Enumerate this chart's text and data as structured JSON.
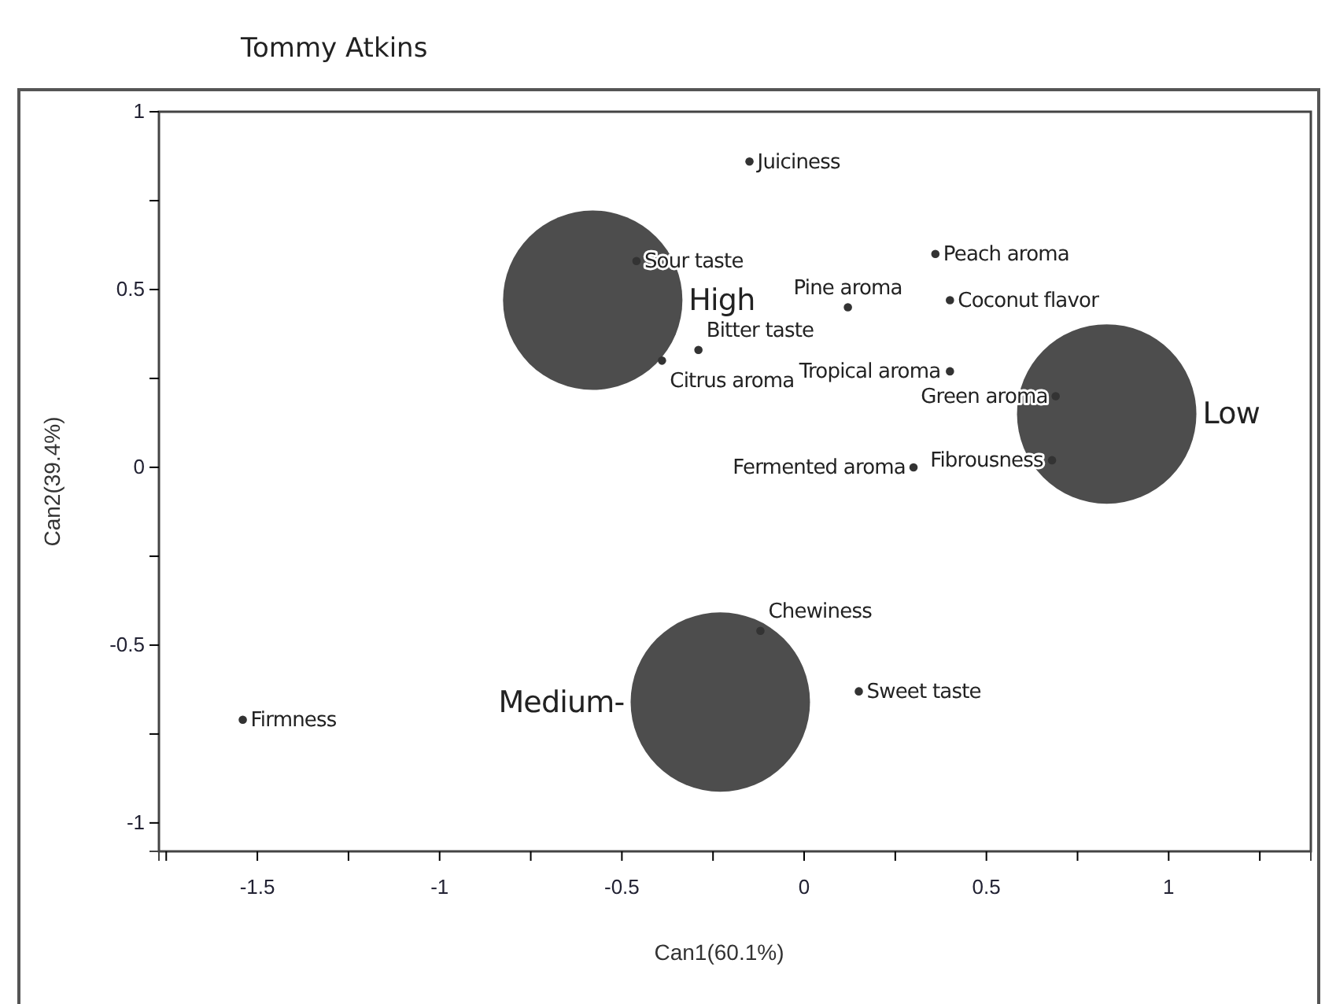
{
  "chart_data": {
    "type": "scatter",
    "title": "Tommy Atkins",
    "xlabel": "Can1(60.1%)",
    "ylabel": "Can2(39.4%)",
    "xlim": [
      -1.77,
      1.39
    ],
    "ylim": [
      -1.08,
      1.0
    ],
    "xticks": [
      {
        "value": -1.75,
        "label": null
      },
      -1.5,
      {
        "value": -1.25,
        "label": null
      },
      -1,
      {
        "value": -0.75,
        "label": null
      },
      -0.5,
      {
        "value": -0.25,
        "label": null
      },
      0,
      {
        "value": 0.25,
        "label": null
      },
      0.5,
      {
        "value": 0.75,
        "label": null
      },
      1,
      {
        "value": 1.25,
        "label": null
      }
    ],
    "yticks": [
      -1,
      {
        "value": -0.75,
        "label": null
      },
      -0.5,
      {
        "value": -0.25,
        "label": null
      },
      0,
      {
        "value": 0.25,
        "label": null
      },
      0.5,
      {
        "value": 0.75,
        "label": null
      },
      1
    ],
    "grid": false,
    "legend": false,
    "marker": "circle",
    "series": [
      {
        "type": "bubble",
        "name": "High",
        "color": "#4d4d4d",
        "x": [
          -0.58
        ],
        "values": [
          0.47
        ],
        "sizes": [
          1
        ]
      },
      {
        "type": "bubble",
        "name": "Low",
        "color": "#4d4d4d",
        "x": [
          0.83
        ],
        "values": [
          0.15
        ],
        "sizes": [
          1
        ]
      },
      {
        "type": "bubble",
        "name": "Medium-",
        "color": "#4d4d4d",
        "x": [
          -0.23
        ],
        "values": [
          -0.66
        ],
        "sizes": [
          1
        ]
      },
      {
        "name": "Juiciness",
        "color": "#333333",
        "x": [
          -0.15
        ],
        "values": [
          0.86
        ]
      },
      {
        "name": "Sour taste",
        "color": "#333333",
        "x": [
          -0.46
        ],
        "values": [
          0.58
        ]
      },
      {
        "name": "Peach aroma",
        "color": "#333333",
        "x": [
          0.36
        ],
        "values": [
          0.6
        ]
      },
      {
        "name": "Pine aroma",
        "color": "#333333",
        "x": [
          0.12
        ],
        "values": [
          0.45
        ]
      },
      {
        "name": "Coconut flavor",
        "color": "#333333",
        "x": [
          0.4
        ],
        "values": [
          0.47
        ]
      },
      {
        "name": "Tropical aroma",
        "color": "#333333",
        "x": [
          0.4
        ],
        "values": [
          0.27
        ]
      },
      {
        "name": "Bitter taste",
        "color": "#333333",
        "x": [
          -0.29
        ],
        "values": [
          0.33
        ]
      },
      {
        "name": "Citrus aroma",
        "color": "#333333",
        "x": [
          -0.39
        ],
        "values": [
          0.3
        ]
      },
      {
        "name": "Green aroma",
        "color": "#333333",
        "x": [
          0.69
        ],
        "values": [
          0.2
        ]
      },
      {
        "name": "Fibrousness",
        "color": "#333333",
        "x": [
          0.68
        ],
        "values": [
          0.02
        ]
      },
      {
        "name": "Fermented aroma",
        "color": "#333333",
        "x": [
          0.3
        ],
        "values": [
          0.0
        ]
      },
      {
        "name": "Chewiness",
        "color": "#333333",
        "x": [
          -0.12
        ],
        "values": [
          -0.46
        ]
      },
      {
        "name": "Sweet taste",
        "color": "#333333",
        "x": [
          0.15
        ],
        "values": [
          -0.63
        ]
      },
      {
        "name": "Firmness",
        "color": "#333333",
        "x": [
          -1.54
        ],
        "values": [
          -0.71
        ]
      }
    ]
  }
}
